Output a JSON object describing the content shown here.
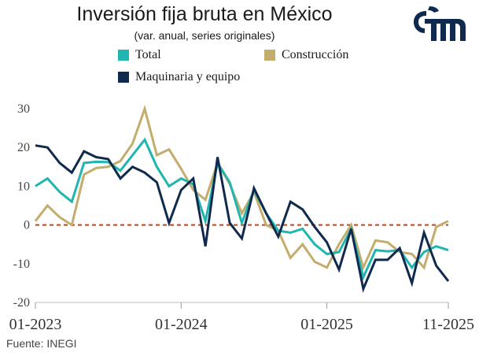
{
  "header": {
    "title": "Inversión fija bruta en México",
    "subtitle": "(var. anual, series originales)"
  },
  "logo": {
    "icon": "brand-logo-icon"
  },
  "source": "Fuente: INEGI",
  "chart_data": {
    "type": "line",
    "title": "Inversión fija bruta en México",
    "subtitle": "(var. anual, series originales)",
    "xlabel": "",
    "ylabel": "",
    "ylim": [
      -20,
      30
    ],
    "yticks": [
      30,
      20,
      10,
      0,
      -10,
      -20
    ],
    "x_tick_labels": [
      {
        "index": 0,
        "label": "01-2023"
      },
      {
        "index": 12,
        "label": "01-2024"
      },
      {
        "index": 24,
        "label": "01-2025"
      },
      {
        "index": 34,
        "label": "11-2025"
      }
    ],
    "zero_line_color": "#c0451f",
    "legend_position": "top",
    "series": [
      {
        "name": "Total",
        "color": "#1fb5b0",
        "values": [
          10,
          12,
          8.5,
          6,
          16,
          16.3,
          16.2,
          14,
          18,
          22,
          15,
          10,
          12,
          10.5,
          1,
          16,
          11,
          0.5,
          9,
          3,
          -1.5,
          -2,
          -1,
          -5,
          -7.5,
          -7,
          -1,
          -13.5,
          -6.5,
          -6.8,
          -6.5,
          -11,
          -7,
          -5.5,
          -6.5
        ]
      },
      {
        "name": "Construcción",
        "color": "#c3ad6c",
        "values": [
          1,
          5,
          2,
          0,
          13,
          14.7,
          15,
          16.5,
          21,
          30,
          18,
          19.5,
          14.5,
          9,
          6.5,
          16,
          10.5,
          3,
          8.5,
          0,
          -1.5,
          -8.5,
          -5,
          -9.5,
          -11,
          -5,
          0,
          -11,
          -4,
          -4.5,
          -7,
          -7.5,
          -11,
          -0.5,
          1
        ]
      },
      {
        "name": "Maquinaria y equipo",
        "color": "#0f2a4e",
        "values": [
          20.5,
          20,
          16,
          13.5,
          19,
          17.5,
          17,
          12,
          15,
          13.5,
          11,
          0.5,
          9,
          12,
          -5.5,
          17.5,
          0.5,
          -3.5,
          9.5,
          3,
          -3,
          6,
          4,
          -0.5,
          -4.5,
          -11.5,
          -1,
          -16.5,
          -9,
          -9,
          -6,
          -15,
          -2,
          -10.5,
          -14.5
        ]
      }
    ]
  }
}
